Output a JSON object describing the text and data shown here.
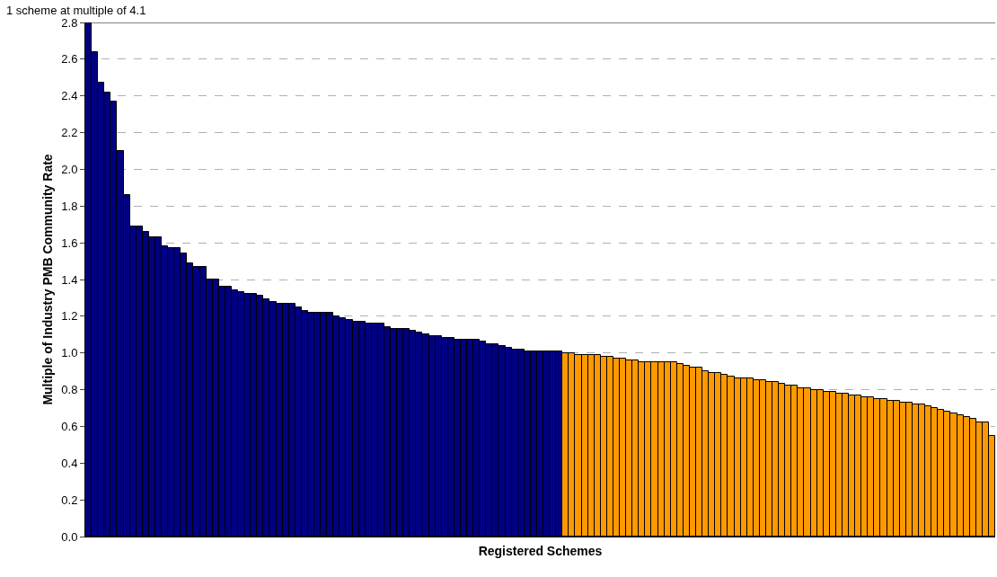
{
  "chart_data": {
    "type": "bar",
    "xlabel": "Registered Schemes",
    "ylabel": "Multiple of Industry PMB Community Rate",
    "annotations": [
      "1 scheme at multiple of 4.1"
    ],
    "categories": [
      null,
      null,
      null,
      null,
      null,
      null,
      null,
      null,
      null,
      null,
      null,
      null,
      null,
      null,
      null,
      null,
      null,
      null,
      null,
      null,
      null,
      null,
      null,
      null,
      null,
      null,
      null,
      null,
      null,
      null,
      null,
      null,
      null,
      null,
      null,
      null,
      null,
      null,
      null,
      null,
      null,
      null,
      null,
      null,
      null,
      null,
      null,
      null,
      null,
      null,
      null,
      null,
      null,
      null,
      null,
      null,
      null,
      null,
      null,
      null,
      null,
      null,
      null,
      null,
      null,
      null,
      null,
      null,
      null,
      null,
      null,
      null,
      null,
      null,
      null,
      null,
      null,
      null,
      null,
      null,
      null,
      null,
      null,
      null,
      null,
      null,
      null,
      null,
      null,
      null,
      null,
      null,
      null,
      null,
      null,
      null,
      null,
      null,
      null,
      null,
      null,
      null,
      null,
      null,
      null,
      null,
      null,
      null,
      null,
      null,
      null,
      null,
      null,
      null,
      null,
      null,
      null,
      null,
      null,
      null,
      null,
      null,
      null,
      null,
      null,
      null,
      null,
      null,
      null,
      null,
      null,
      null,
      null,
      null,
      null,
      null,
      null,
      null,
      null,
      null,
      null,
      null,
      null
    ],
    "values": [
      2.8,
      2.64,
      2.47,
      2.42,
      2.37,
      2.1,
      1.86,
      1.69,
      1.69,
      1.66,
      1.63,
      1.63,
      1.58,
      1.57,
      1.57,
      1.54,
      1.49,
      1.47,
      1.47,
      1.4,
      1.4,
      1.36,
      1.36,
      1.34,
      1.33,
      1.32,
      1.32,
      1.31,
      1.29,
      1.28,
      1.27,
      1.27,
      1.27,
      1.25,
      1.23,
      1.22,
      1.22,
      1.22,
      1.22,
      1.2,
      1.19,
      1.18,
      1.17,
      1.17,
      1.16,
      1.16,
      1.16,
      1.14,
      1.13,
      1.13,
      1.13,
      1.12,
      1.11,
      1.1,
      1.09,
      1.09,
      1.08,
      1.08,
      1.07,
      1.07,
      1.07,
      1.07,
      1.06,
      1.05,
      1.05,
      1.04,
      1.03,
      1.02,
      1.02,
      1.01,
      1.01,
      1.01,
      1.01,
      1.01,
      1.01,
      1.0,
      1.0,
      0.99,
      0.99,
      0.99,
      0.99,
      0.98,
      0.98,
      0.97,
      0.97,
      0.96,
      0.96,
      0.95,
      0.95,
      0.95,
      0.95,
      0.95,
      0.95,
      0.94,
      0.93,
      0.92,
      0.92,
      0.9,
      0.89,
      0.89,
      0.88,
      0.87,
      0.86,
      0.86,
      0.86,
      0.85,
      0.85,
      0.84,
      0.84,
      0.83,
      0.82,
      0.82,
      0.81,
      0.81,
      0.8,
      0.8,
      0.79,
      0.79,
      0.78,
      0.78,
      0.77,
      0.77,
      0.76,
      0.76,
      0.75,
      0.75,
      0.74,
      0.74,
      0.73,
      0.73,
      0.72,
      0.72,
      0.71,
      0.7,
      0.69,
      0.68,
      0.67,
      0.66,
      0.65,
      0.64,
      0.62,
      0.62,
      0.55
    ],
    "colors": [
      "#000080",
      "#000080",
      "#000080",
      "#000080",
      "#000080",
      "#000080",
      "#000080",
      "#000080",
      "#000080",
      "#000080",
      "#000080",
      "#000080",
      "#000080",
      "#000080",
      "#000080",
      "#000080",
      "#000080",
      "#000080",
      "#000080",
      "#000080",
      "#000080",
      "#000080",
      "#000080",
      "#000080",
      "#000080",
      "#000080",
      "#000080",
      "#000080",
      "#000080",
      "#000080",
      "#000080",
      "#000080",
      "#000080",
      "#000080",
      "#000080",
      "#000080",
      "#000080",
      "#000080",
      "#000080",
      "#000080",
      "#000080",
      "#000080",
      "#000080",
      "#000080",
      "#000080",
      "#000080",
      "#000080",
      "#000080",
      "#000080",
      "#000080",
      "#000080",
      "#000080",
      "#000080",
      "#000080",
      "#000080",
      "#000080",
      "#000080",
      "#000080",
      "#000080",
      "#000080",
      "#000080",
      "#000080",
      "#000080",
      "#000080",
      "#000080",
      "#000080",
      "#000080",
      "#000080",
      "#000080",
      "#000080",
      "#000080",
      "#000080",
      "#000080",
      "#000080",
      "#000080",
      "#ff9900",
      "#ff9900",
      "#ff9900",
      "#ff9900",
      "#ff9900",
      "#ff9900",
      "#ff9900",
      "#ff9900",
      "#ff9900",
      "#ff9900",
      "#ff9900",
      "#ff9900",
      "#ff9900",
      "#ff9900",
      "#ff9900",
      "#ff9900",
      "#ff9900",
      "#ff9900",
      "#ff9900",
      "#ff9900",
      "#ff9900",
      "#ff9900",
      "#ff9900",
      "#ff9900",
      "#ff9900",
      "#ff9900",
      "#ff9900",
      "#ff9900",
      "#ff9900",
      "#ff9900",
      "#ff9900",
      "#ff9900",
      "#ff9900",
      "#ff9900",
      "#ff9900",
      "#ff9900",
      "#ff9900",
      "#ff9900",
      "#ff9900",
      "#ff9900",
      "#ff9900",
      "#ff9900",
      "#ff9900",
      "#ff9900",
      "#ff9900",
      "#ff9900",
      "#ff9900",
      "#ff9900",
      "#ff9900",
      "#ff9900",
      "#ff9900",
      "#ff9900",
      "#ff9900",
      "#ff9900",
      "#ff9900",
      "#ff9900",
      "#ff9900",
      "#ff9900",
      "#ff9900",
      "#ff9900",
      "#ff9900",
      "#ff9900",
      "#ff9900",
      "#ff9900",
      "#ff9900",
      "#ff9900",
      "#ff9900",
      "#ff9900"
    ],
    "ylim": [
      0,
      2.8
    ],
    "yticks": [
      {
        "value": 0,
        "label": "0.0"
      },
      {
        "value": 0.2,
        "label": "0.2"
      },
      {
        "value": 0.4,
        "label": "0.4"
      },
      {
        "value": 0.6,
        "label": "0.6"
      },
      {
        "value": 0.8,
        "label": "0.8"
      },
      {
        "value": 1.0,
        "label": "1.0"
      },
      {
        "value": 1.2,
        "label": "1.2"
      },
      {
        "value": 1.4,
        "label": "1.4"
      },
      {
        "value": 1.6,
        "label": "1.6"
      },
      {
        "value": 1.8,
        "label": "1.8"
      },
      {
        "value": 2.0,
        "label": "2.0"
      },
      {
        "value": 2.2,
        "label": "2.2"
      },
      {
        "value": 2.4,
        "label": "2.4"
      },
      {
        "value": 2.6,
        "label": "2.6"
      },
      {
        "value": 2.8,
        "label": "2.8"
      }
    ],
    "grid": "y"
  }
}
